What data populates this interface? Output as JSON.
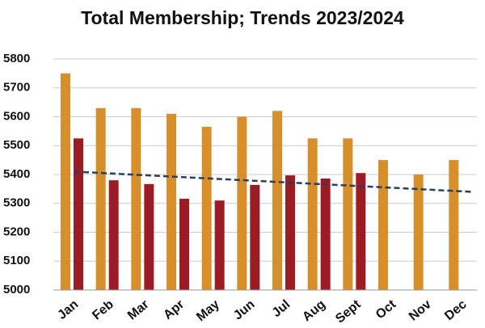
{
  "chart_data": {
    "type": "bar",
    "title": "Total Membership; Trends 2023/2024",
    "categories": [
      "Jan",
      "Feb",
      "Mar",
      "Apr",
      "May",
      "Jun",
      "Jul",
      "Aug",
      "Sept",
      "Oct",
      "Nov",
      "Dec"
    ],
    "series": [
      {
        "color": "#d68f2a",
        "values": [
          5750,
          5630,
          5630,
          5610,
          5565,
          5600,
          5620,
          5525,
          5525,
          5450,
          5400,
          5450
        ]
      },
      {
        "color": "#9b1c24",
        "values": [
          5525,
          5380,
          5367,
          5316,
          5310,
          5364,
          5397,
          5386,
          5405,
          null,
          null,
          null
        ]
      }
    ],
    "trendline": {
      "color": "#2b3f5c",
      "values": [
        5410,
        5340
      ]
    },
    "ylim": [
      5000,
      5800
    ],
    "yticks": [
      5000,
      5100,
      5200,
      5300,
      5400,
      5500,
      5600,
      5700,
      5800
    ],
    "grid": true
  }
}
